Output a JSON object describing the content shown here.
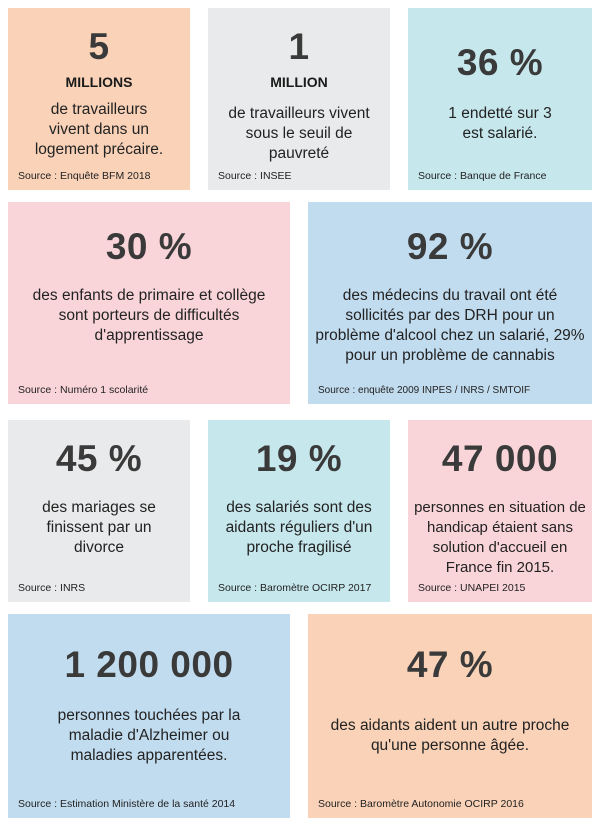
{
  "cards": [
    {
      "big": "5",
      "unit": "MILLIONS",
      "desc": "de travailleurs vivent dans un logement précaire.",
      "source": "Source : Enquête BFM 2018",
      "color": "#f9d2b8"
    },
    {
      "big": "1",
      "unit": "MILLION",
      "desc": "de travailleurs vivent sous le seuil de pauvreté",
      "source": "Source : INSEE",
      "color": "#e9eaeb"
    },
    {
      "big": "36 %",
      "desc": "1 endetté sur 3 est salarié.",
      "source": "Source : Banque de France",
      "color": "#c6e7ec"
    },
    {
      "big": "30 %",
      "desc": "des enfants de primaire et collège sont porteurs de difficultés d'apprentissage",
      "source": "Source : Numéro 1 scolarité",
      "color": "#f9d5da"
    },
    {
      "big": "92 %",
      "desc": "des médecins du travail ont été sollicités par des DRH pour un problème d'alcool chez un salarié, 29% pour un problème de cannabis",
      "source": "Source : enquête 2009 INPES / INRS / SMTOIF",
      "color": "#c2dcef"
    },
    {
      "big": "45 %",
      "desc": "des mariages se finissent par un divorce",
      "source": "Source : INRS",
      "color": "#e9eaeb"
    },
    {
      "big": "19 %",
      "desc": "des salariés sont des aidants réguliers d'un proche fragilisé",
      "source": "Source : Baromètre OCIRP 2017",
      "color": "#c6e7ec"
    },
    {
      "big": "47 000",
      "desc": "personnes en situation de handicap étaient sans solution d'accueil en France fin 2015.",
      "source": "Source : UNAPEI 2015",
      "color": "#f9d5da"
    },
    {
      "big": "1 200 000",
      "desc": "personnes touchées par la maladie d'Alzheimer ou maladies apparentées.",
      "source": "Source : Estimation Ministère de la santé  2014",
      "color": "#c2dcef"
    },
    {
      "big": "47 %",
      "desc": "des aidants aident un autre proche qu'une  personne âgée.",
      "source": "Source : Baromètre Autonomie OCIRP 2016",
      "color": "#f9d2b8"
    }
  ]
}
